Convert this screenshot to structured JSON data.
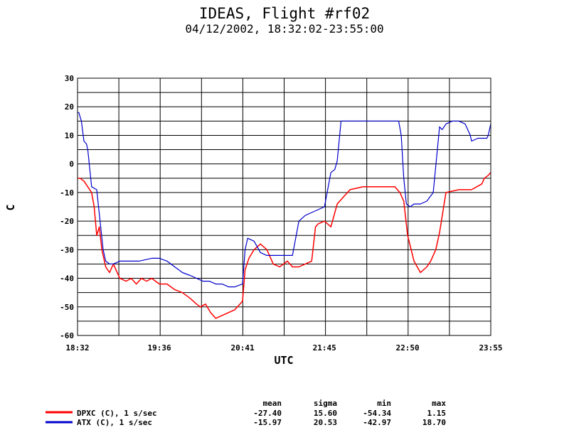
{
  "chart_data": {
    "type": "line",
    "title": "IDEAS, Flight #rf02",
    "subtitle": "04/12/2002, 18:32:02-23:55:00",
    "xlabel": "UTC",
    "ylabel": "C",
    "xlim": [
      "18:32",
      "23:55"
    ],
    "ylim": [
      -60,
      30
    ],
    "yticks": [
      -60,
      -50,
      -40,
      -30,
      -20,
      -10,
      0,
      10,
      20,
      30
    ],
    "xticks": [
      "18:32",
      "19:36",
      "20:41",
      "21:45",
      "22:50",
      "23:55"
    ],
    "grid": true,
    "stats_headers": [
      "mean",
      "sigma",
      "min",
      "max"
    ],
    "series": [
      {
        "name": "DPXC (C), 1 s/sec",
        "color": "#ff0000",
        "stats": [
          "-27.40",
          "15.60",
          "-54.34",
          "1.15"
        ],
        "x": [
          "18:32",
          "18:34",
          "18:37",
          "18:40",
          "18:43",
          "18:45",
          "18:47",
          "18:49",
          "18:51",
          "18:54",
          "18:57",
          "19:00",
          "19:05",
          "19:10",
          "19:14",
          "19:18",
          "19:22",
          "19:26",
          "19:30",
          "19:36",
          "19:42",
          "19:48",
          "19:54",
          "20:00",
          "20:05",
          "20:08",
          "20:12",
          "20:16",
          "20:20",
          "20:25",
          "20:30",
          "20:35",
          "20:39",
          "20:41",
          "20:43",
          "20:46",
          "20:50",
          "20:55",
          "21:00",
          "21:05",
          "21:10",
          "21:16",
          "21:20",
          "21:25",
          "21:30",
          "21:35",
          "21:38",
          "21:40",
          "21:45",
          "21:50",
          "21:55",
          "22:05",
          "22:15",
          "22:25",
          "22:30",
          "22:35",
          "22:40",
          "22:44",
          "22:47",
          "22:50",
          "22:55",
          "23:00",
          "23:05",
          "23:08",
          "23:12",
          "23:15",
          "23:20",
          "23:30",
          "23:40",
          "23:48",
          "23:50",
          "23:53",
          "23:55"
        ],
        "y": [
          -5,
          -5,
          -6,
          -8,
          -10,
          -15,
          -25,
          -22,
          -30,
          -36,
          -38,
          -35,
          -40,
          -41,
          -40,
          -42,
          -40,
          -41,
          -40,
          -42,
          -42,
          -44,
          -45,
          -47,
          -49,
          -50,
          -49,
          -52,
          -54,
          -53,
          -52,
          -51,
          -49,
          -48,
          -37,
          -33,
          -30,
          -28,
          -30,
          -35,
          -36,
          -34,
          -36,
          -36,
          -35,
          -34,
          -22,
          -21,
          -20,
          -22,
          -14,
          -9,
          -8,
          -8,
          -8,
          -8,
          -8,
          -10,
          -13,
          -25,
          -34,
          -38,
          -36,
          -34,
          -30,
          -24,
          -10,
          -9,
          -9,
          -7,
          -5,
          -4,
          -3
        ]
      },
      {
        "name": "ATX (C), 1 s/sec",
        "color": "#0000cc",
        "stats": [
          "-15.97",
          "20.53",
          "-42.97",
          "18.70"
        ],
        "x": [
          "18:32",
          "18:33",
          "18:35",
          "18:37",
          "18:39",
          "18:40",
          "18:43",
          "18:47",
          "18:52",
          "18:54",
          "18:57",
          "19:00",
          "19:05",
          "19:10",
          "19:20",
          "19:30",
          "19:36",
          "19:42",
          "19:48",
          "19:54",
          "20:00",
          "20:05",
          "20:10",
          "20:15",
          "20:20",
          "20:25",
          "20:30",
          "20:35",
          "20:41",
          "20:43",
          "20:45",
          "20:50",
          "20:55",
          "21:00",
          "21:05",
          "21:10",
          "21:16",
          "21:20",
          "21:25",
          "21:30",
          "21:35",
          "21:40",
          "21:45",
          "21:50",
          "21:53",
          "21:55",
          "21:58",
          "22:03",
          "22:10",
          "22:20",
          "22:30",
          "22:40",
          "22:43",
          "22:45",
          "22:47",
          "22:49",
          "22:52",
          "22:55",
          "23:00",
          "23:05",
          "23:10",
          "23:15",
          "23:17",
          "23:20",
          "23:25",
          "23:30",
          "23:35",
          "23:39",
          "23:40",
          "23:45",
          "23:52",
          "23:53",
          "23:55"
        ],
        "y": [
          18,
          18,
          15,
          8,
          7,
          5,
          -8,
          -9,
          -30,
          -34,
          -35,
          -35,
          -34,
          -34,
          -34,
          -33,
          -33,
          -34,
          -36,
          -38,
          -39,
          -40,
          -41,
          -41,
          -42,
          -42,
          -43,
          -43,
          -42,
          -30,
          -26,
          -27,
          -31,
          -32,
          -32,
          -32,
          -32,
          -32,
          -20,
          -18,
          -17,
          -16,
          -15,
          -3,
          -2,
          1,
          15,
          15,
          15,
          15,
          15,
          15,
          15,
          10,
          -5,
          -14,
          -15,
          -14,
          -14,
          -13,
          -10,
          13,
          12,
          14,
          15,
          15,
          14,
          10,
          8,
          9,
          9,
          10,
          14
        ]
      }
    ]
  }
}
